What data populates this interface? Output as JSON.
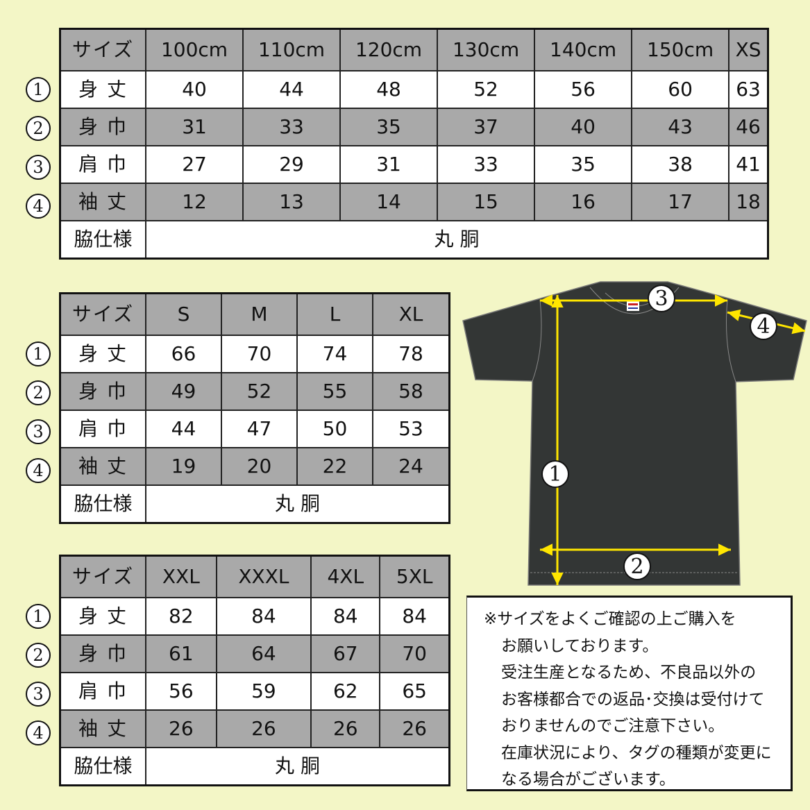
{
  "row_labels": {
    "size": "サイズ",
    "length": "身 丈",
    "width": "身 巾",
    "shoulder": "肩 巾",
    "sleeve": "袖 丈",
    "side": "脇仕様"
  },
  "markers": [
    "①",
    "②",
    "③",
    "④"
  ],
  "tables": [
    {
      "sizes": [
        "100cm",
        "110cm",
        "120cm",
        "130cm",
        "140cm",
        "150cm",
        "XS"
      ],
      "length": [
        "40",
        "44",
        "48",
        "52",
        "56",
        "60",
        "63"
      ],
      "width": [
        "31",
        "33",
        "35",
        "37",
        "40",
        "43",
        "46"
      ],
      "shoulder": [
        "27",
        "29",
        "31",
        "33",
        "35",
        "38",
        "41"
      ],
      "sleeve": [
        "12",
        "13",
        "14",
        "15",
        "16",
        "17",
        "18"
      ],
      "side": "丸 胴"
    },
    {
      "sizes": [
        "S",
        "M",
        "L",
        "XL"
      ],
      "length": [
        "66",
        "70",
        "74",
        "78"
      ],
      "width": [
        "49",
        "52",
        "55",
        "58"
      ],
      "shoulder": [
        "44",
        "47",
        "50",
        "53"
      ],
      "sleeve": [
        "19",
        "20",
        "22",
        "24"
      ],
      "side": "丸 胴"
    },
    {
      "sizes": [
        "XXL",
        "XXXL",
        "4XL",
        "5XL"
      ],
      "length": [
        "82",
        "84",
        "84",
        "84"
      ],
      "width": [
        "61",
        "64",
        "67",
        "70"
      ],
      "shoulder": [
        "56",
        "59",
        "62",
        "65"
      ],
      "sleeve": [
        "26",
        "26",
        "26",
        "26"
      ],
      "side": "丸 胴"
    }
  ],
  "diagram": {
    "markers": [
      "1",
      "2",
      "3",
      "4"
    ],
    "shirt_color": "#333635",
    "arrow_color": "#ffe600"
  },
  "note": [
    "※サイズをよくご確認の上ご購入を",
    "お願いしております。",
    "受注生産となるため、不良品以外の",
    "お客様都合での返品･交換は受付けて",
    "おりませんのでご注意下さい。",
    "在庫状況により、タグの種類が変更に",
    "なる場合がございます。"
  ],
  "colors": {
    "background": "#f3f6c6",
    "gray_row": "#a9a9a9"
  }
}
